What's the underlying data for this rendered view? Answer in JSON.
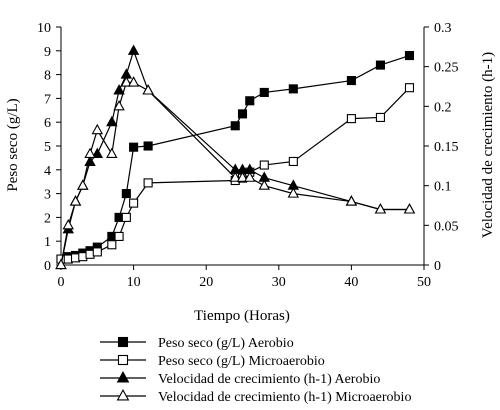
{
  "chart_data": {
    "type": "line",
    "xlabel": "Tiempo (Horas)",
    "ylabel_left": "Peso seco (g/L)",
    "ylabel_right": "Velocidad de crecimiento (h-1)",
    "xlim": [
      0,
      50
    ],
    "ylim_left": [
      0,
      10
    ],
    "ylim_right": [
      0,
      0.3
    ],
    "x_ticks": [
      "0",
      "10",
      "20",
      "30",
      "40",
      "50"
    ],
    "y_left_ticks": [
      "0",
      "1",
      "2",
      "3",
      "4",
      "5",
      "6",
      "7",
      "8",
      "9",
      "10"
    ],
    "y_right_ticks": [
      "0",
      "0.05",
      "0.1",
      "0.15",
      "0.2",
      "0.25",
      "0.3"
    ],
    "grid": false,
    "legend_position": "bottom",
    "series": [
      {
        "name": "Peso seco (g/L) Aerobio",
        "axis": "left",
        "marker": "square",
        "fill": "filled",
        "x": [
          0,
          1,
          2,
          3,
          4,
          5,
          7,
          8,
          9,
          10,
          12,
          24,
          25,
          26,
          28,
          32,
          40,
          44,
          48
        ],
        "y": [
          0.25,
          0.35,
          0.4,
          0.5,
          0.6,
          0.75,
          1.2,
          2.0,
          3.0,
          4.95,
          5.0,
          5.85,
          6.35,
          6.9,
          7.25,
          7.4,
          7.75,
          8.4,
          8.8
        ]
      },
      {
        "name": "Peso seco (g/L) Microaerobio",
        "axis": "left",
        "marker": "square",
        "fill": "open",
        "x": [
          0,
          1,
          2,
          3,
          4,
          5,
          7,
          8,
          9,
          10,
          12,
          24,
          25,
          26,
          28,
          32,
          40,
          44,
          48
        ],
        "y": [
          0.25,
          0.25,
          0.3,
          0.35,
          0.45,
          0.55,
          0.85,
          1.2,
          2.0,
          2.6,
          3.45,
          3.55,
          3.65,
          3.9,
          4.2,
          4.35,
          6.15,
          6.2,
          7.45
        ]
      },
      {
        "name": "Velocidad de crecimiento (h-1) Aerobio",
        "axis": "right",
        "marker": "triangle",
        "fill": "filled",
        "x": [
          0,
          1,
          2,
          3,
          4,
          5,
          7,
          8,
          9,
          10,
          12,
          24,
          25,
          26,
          28,
          32,
          40,
          44,
          48
        ],
        "y": [
          0.0,
          0.045,
          0.08,
          0.1,
          0.13,
          0.14,
          0.18,
          0.22,
          0.24,
          0.27,
          0.22,
          0.12,
          0.12,
          0.12,
          0.11,
          0.1,
          0.08,
          0.07,
          0.07
        ]
      },
      {
        "name": "Velocidad de crecimiento (h-1) Microaerobio",
        "axis": "right",
        "marker": "triangle",
        "fill": "open",
        "x": [
          0,
          1,
          2,
          3,
          4,
          5,
          7,
          8,
          9,
          10,
          12,
          24,
          25,
          26,
          28,
          32,
          40,
          44,
          48
        ],
        "y": [
          0.0,
          0.05,
          0.08,
          0.1,
          0.14,
          0.17,
          0.14,
          0.2,
          0.23,
          0.23,
          0.22,
          0.11,
          0.11,
          0.11,
          0.1,
          0.09,
          0.08,
          0.07,
          0.07
        ]
      }
    ]
  }
}
